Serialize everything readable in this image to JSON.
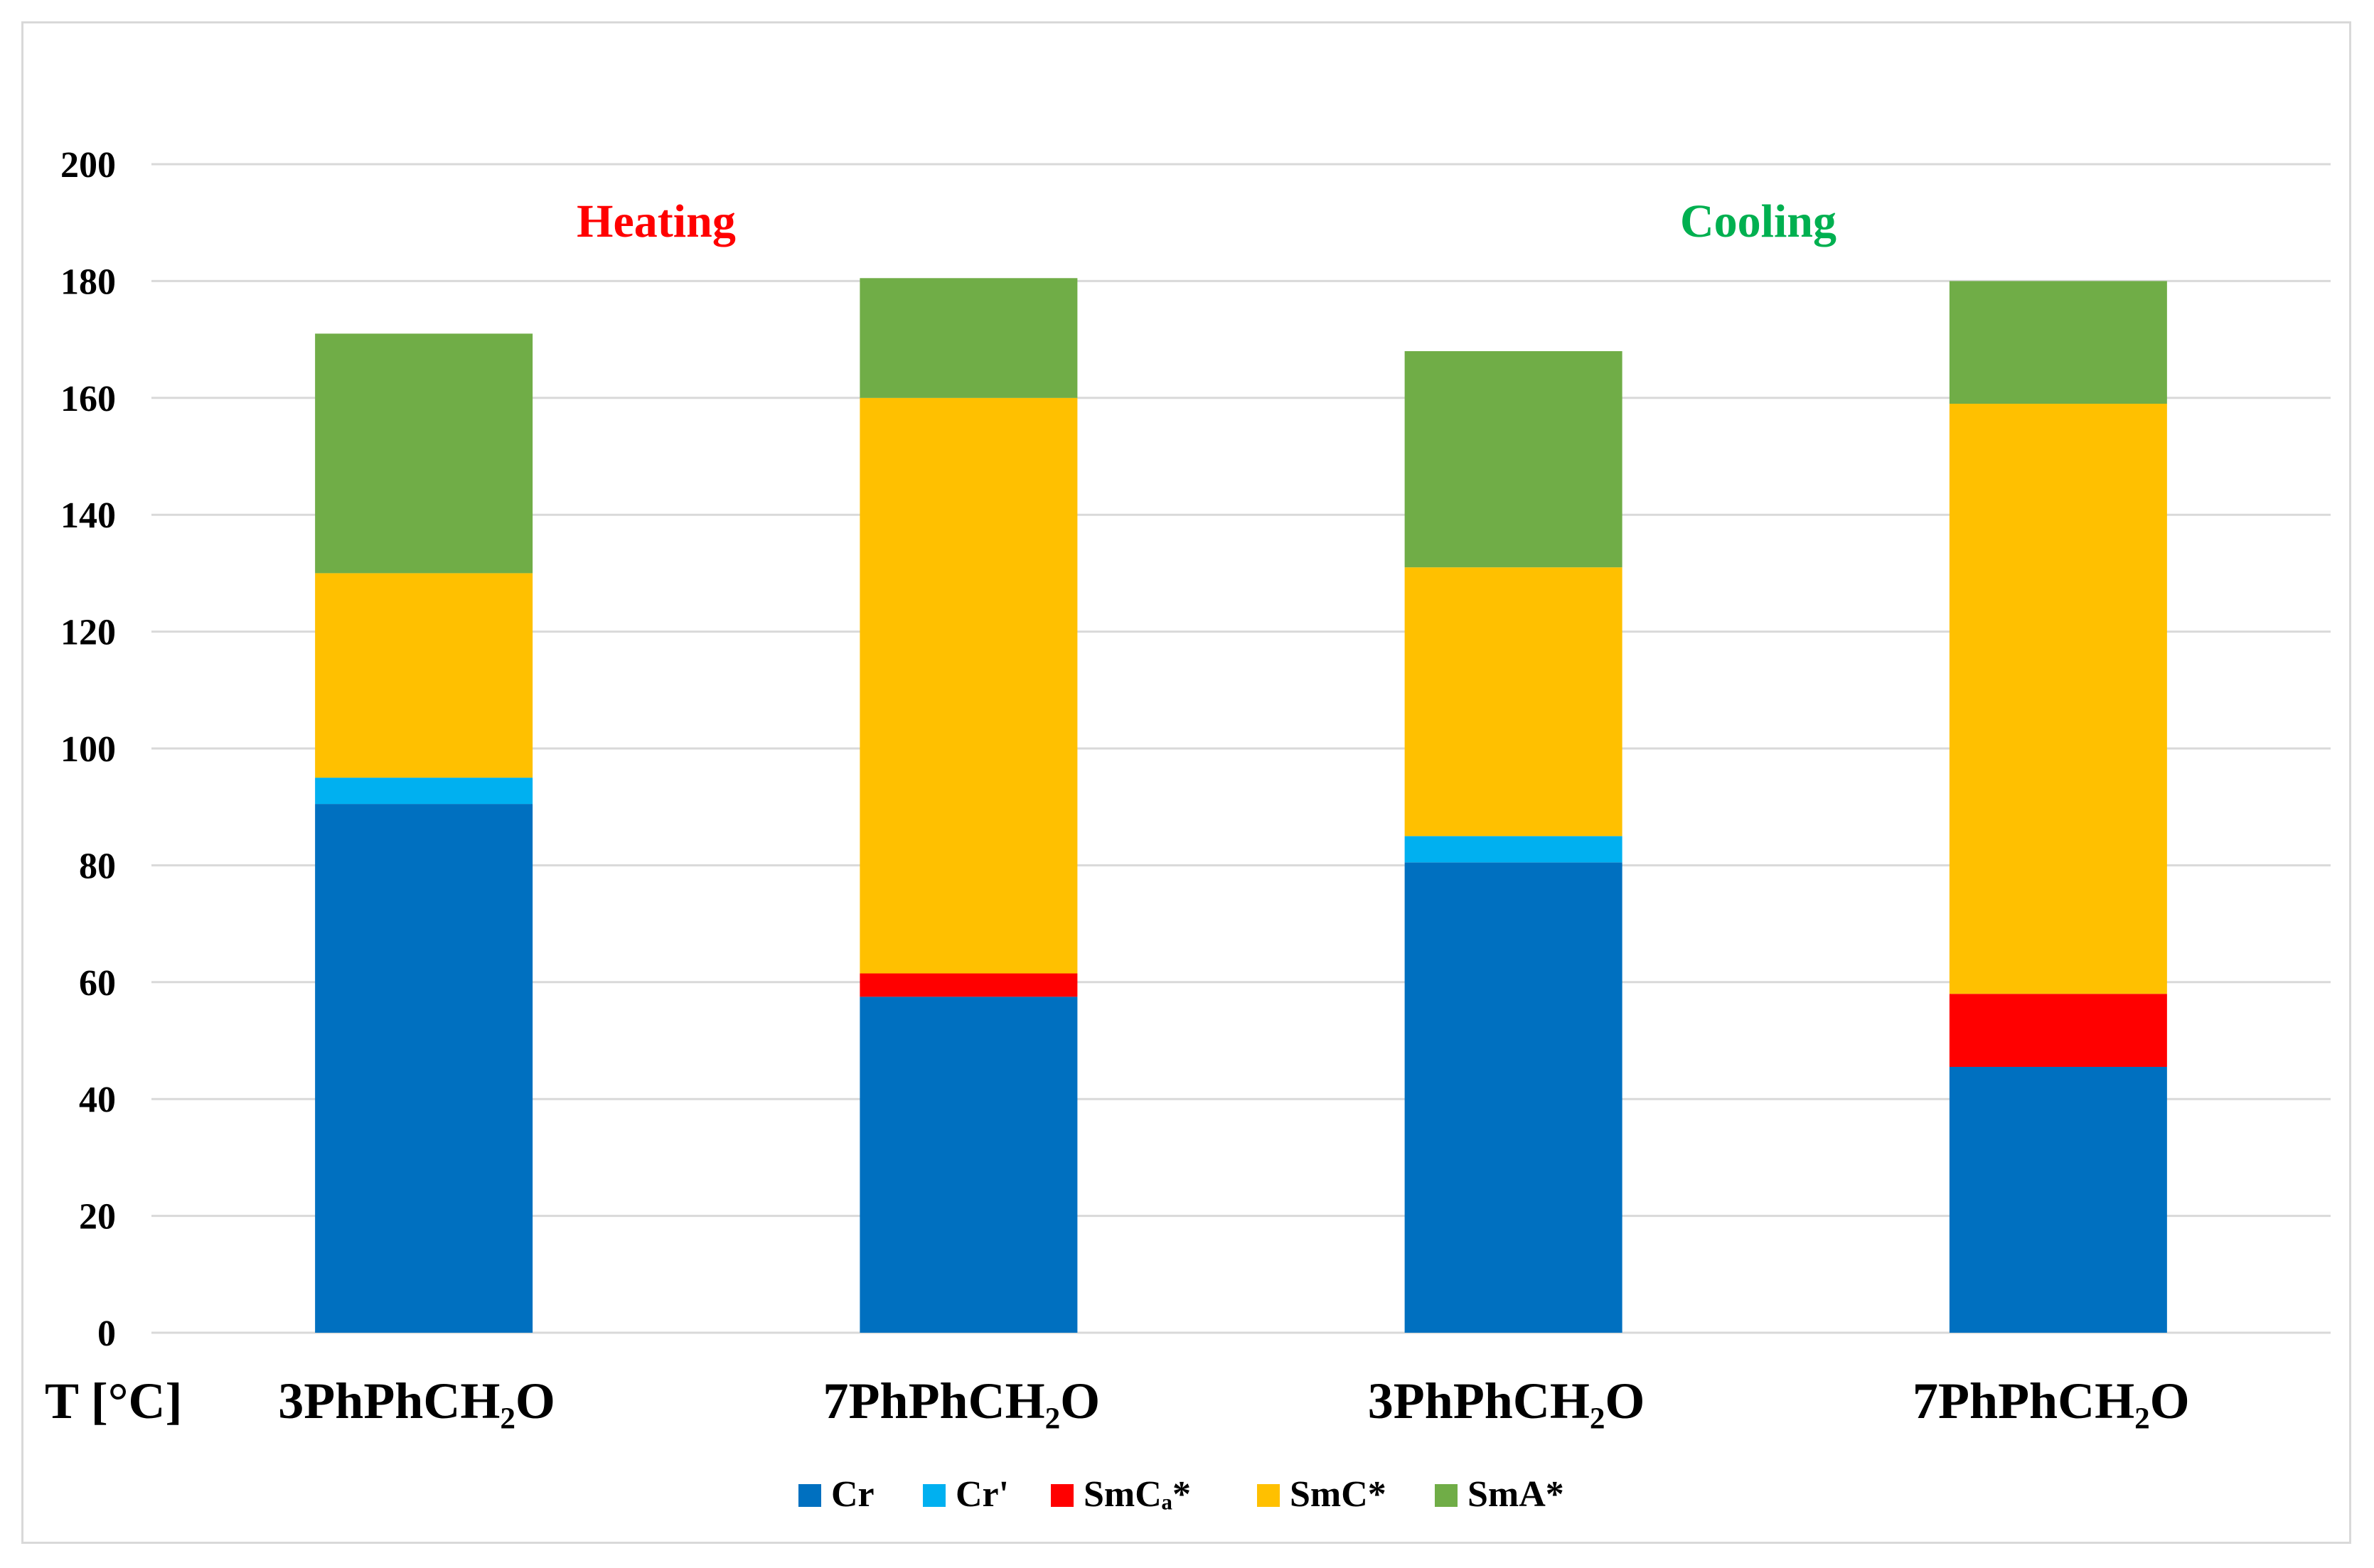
{
  "chart_data": {
    "type": "bar",
    "stacked": true,
    "ylabel": "T [°C]",
    "ylim": [
      0,
      200
    ],
    "yticks": [
      0,
      20,
      40,
      60,
      80,
      100,
      120,
      140,
      160,
      180,
      200
    ],
    "grid": true,
    "legend_position": "bottom",
    "categories": [
      "3PhPhCH₂O",
      "7PhPhCH₂O",
      "3PhPhCH₂O",
      "7PhPhCH₂O"
    ],
    "annotations": [
      {
        "text": "Heating",
        "color": "#ff0000"
      },
      {
        "text": "Cooling",
        "color": "#00b050"
      }
    ],
    "series": [
      {
        "name": "Cr",
        "color": "#0070c0",
        "values": [
          90.5,
          57.5,
          80.5,
          45.5
        ]
      },
      {
        "name": "Cr'",
        "color": "#00b0f0",
        "values": [
          4.5,
          0,
          4.5,
          0
        ]
      },
      {
        "name": "SmCₐ*",
        "color": "#ff0000",
        "values": [
          0,
          4,
          0,
          12.5
        ]
      },
      {
        "name": "SmC*",
        "color": "#ffc000",
        "values": [
          35,
          98.5,
          46,
          101
        ]
      },
      {
        "name": "SmA*",
        "color": "#70ad47",
        "values": [
          41,
          20.5,
          37,
          21
        ]
      }
    ]
  }
}
